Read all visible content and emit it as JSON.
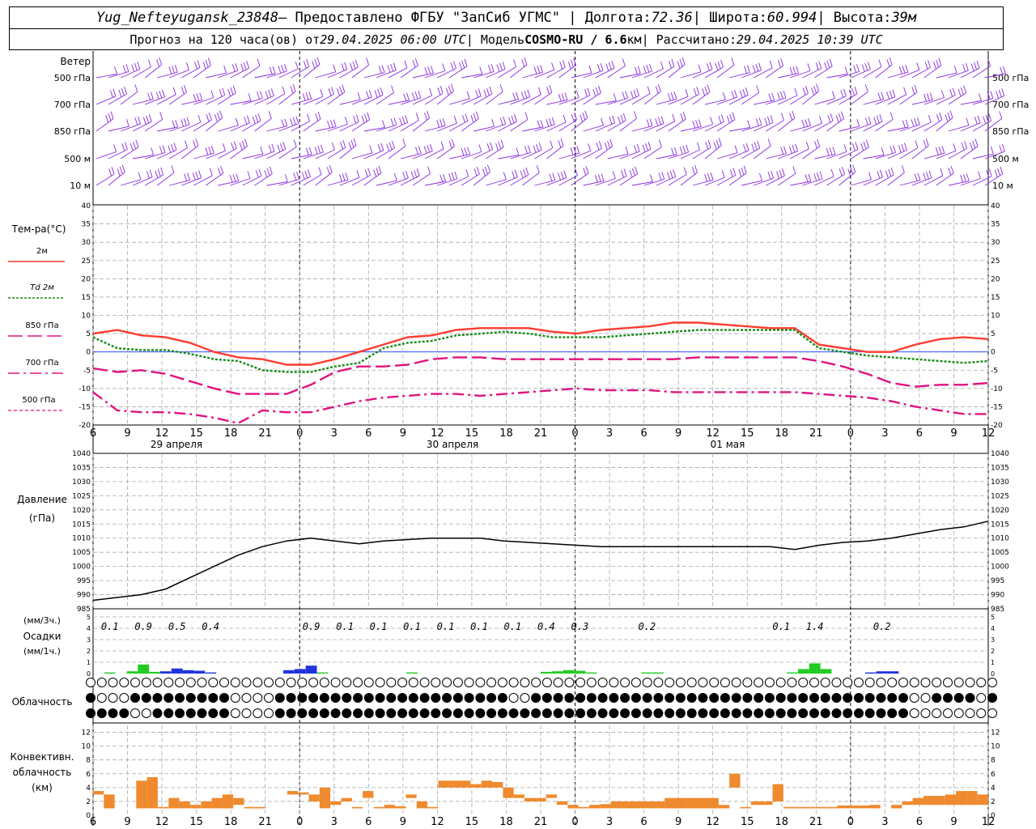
{
  "header": {
    "station": "Yug_Nefteyugansk_23848",
    "provided_by": " – Предоставлено ФГБУ \"ЗапСиб УГМС\" | Долгота: ",
    "lon": "72.36",
    "lat_label": " | Широта: ",
    "lat": "60.994",
    "alt_label": " | Высота: ",
    "alt": "39м",
    "forecast_prefix": "Прогноз на 120 часа(ов) от ",
    "run_time": "29.04.2025 06:00 UTC",
    "model_prefix": "  | Модель ",
    "model": "COSMO-RU / 6.6",
    "model_unit": "км",
    "calc_prefix": " | Рассчитано: ",
    "calc_time": "29.04.2025 10:39 UTC"
  },
  "chart_data": {
    "x_hours": [
      "6",
      "9",
      "12",
      "15",
      "18",
      "21",
      "0",
      "3",
      "6",
      "9",
      "12",
      "15",
      "18",
      "21",
      "0",
      "3",
      "6",
      "9",
      "12",
      "15",
      "18",
      "21",
      "0",
      "3",
      "6",
      "9",
      "12"
    ],
    "dates": [
      "29 апреля",
      "30 апреля",
      "01 мая"
    ],
    "wind": {
      "title": "Ветер",
      "levels": [
        "500 гПа",
        "700 гПа",
        "850 гПа",
        "500 м",
        "10  м"
      ],
      "color": "#8a2be2"
    },
    "temperature": {
      "title": "Тем-ра(°C)",
      "type": "line",
      "ylim": [
        -20,
        40
      ],
      "ticks": [
        -20,
        -15,
        -10,
        -5,
        0,
        5,
        10,
        15,
        20,
        25,
        30,
        35,
        40
      ],
      "series": [
        {
          "name": "2м",
          "color": "#ff3b30",
          "style": "solid",
          "values": [
            5,
            6,
            4.5,
            4,
            2.5,
            0,
            -1.5,
            -2,
            -3.5,
            -3.5,
            -2,
            0,
            2,
            4,
            4.5,
            6,
            6.5,
            6.5,
            6.5,
            5.5,
            5,
            6,
            6.5,
            7,
            8,
            8,
            7.5,
            7,
            6.5,
            6.5,
            2,
            1,
            0,
            0,
            2,
            3.5,
            4,
            3.5
          ]
        },
        {
          "name": "Td  2м",
          "color": "#1a8a1a",
          "style": "dotted",
          "values": [
            4,
            1,
            0.5,
            0.5,
            -0.5,
            -2,
            -2.5,
            -5,
            -5.5,
            -5.5,
            -4,
            -3,
            1,
            2.5,
            3,
            4.5,
            5,
            5.5,
            5,
            4,
            4,
            4,
            4.5,
            5,
            5.5,
            6,
            6,
            6,
            6,
            6,
            1,
            0,
            -1,
            -1.5,
            -2,
            -2.5,
            -3,
            -2.5
          ]
        },
        {
          "name": "850 гПа",
          "color": "#e0137f",
          "style": "longdash",
          "values": [
            -4.5,
            -5.5,
            -5,
            -6,
            -8,
            -10,
            -11.5,
            -11.5,
            -11.5,
            -9,
            -5.5,
            -4,
            -4,
            -3.5,
            -2,
            -1.5,
            -1.5,
            -2,
            -2,
            -2,
            -2,
            -2,
            -2,
            -2,
            -2,
            -1.5,
            -1.5,
            -1.5,
            -1.5,
            -1.5,
            -2.5,
            -4,
            -6,
            -8.5,
            -9.5,
            -9,
            -9,
            -8.5
          ]
        },
        {
          "name": "700 гПа",
          "color": "#e0137f",
          "style": "dashdot",
          "values": [
            -11,
            -16,
            -16.5,
            -16.5,
            -17,
            -18,
            -19.5,
            -16,
            -16.5,
            -16.5,
            -15,
            -13.5,
            -12.5,
            -12,
            -11.5,
            -11.5,
            -12,
            -11.5,
            -11,
            -10.5,
            -10,
            -10.5,
            -10.5,
            -10.5,
            -11,
            -11,
            -11,
            -11,
            -11,
            -11,
            -11.5,
            -12,
            -12.5,
            -13.5,
            -15,
            -16,
            -17,
            -17
          ]
        }
      ]
    },
    "pressure": {
      "title": "Давление",
      "unit": "(гПа)",
      "type": "line",
      "ylim": [
        985,
        1040
      ],
      "ticks": [
        985,
        990,
        995,
        1000,
        1005,
        1010,
        1015,
        1020,
        1025,
        1030,
        1035,
        1040
      ],
      "values": [
        988,
        989,
        990,
        992,
        996,
        1000,
        1004,
        1007,
        1009,
        1010,
        1009,
        1008,
        1009,
        1009.5,
        1010,
        1010,
        1010,
        1009,
        1008.5,
        1008,
        1007.5,
        1007,
        1007,
        1007,
        1007,
        1007,
        1007,
        1007,
        1007,
        1006,
        1007.5,
        1008.5,
        1009,
        1010,
        1011.5,
        1013,
        1014,
        1016
      ]
    },
    "precipitation": {
      "title": "Осадки",
      "unit3": "(мм/3ч.)",
      "unit1": "(мм/1ч.)",
      "type": "bar",
      "ylim": [
        0,
        5
      ],
      "ticks": [
        0,
        1,
        2,
        3,
        4,
        5
      ],
      "labels": [
        {
          "x": 1,
          "text": "0.1"
        },
        {
          "x": 4,
          "text": "0.9"
        },
        {
          "x": 7,
          "text": "0.5"
        },
        {
          "x": 10,
          "text": "0.4"
        },
        {
          "x": 19,
          "text": "0.9"
        },
        {
          "x": 22,
          "text": "0.1"
        },
        {
          "x": 25,
          "text": "0.1"
        },
        {
          "x": 28,
          "text": "0.1"
        },
        {
          "x": 31,
          "text": "0.1"
        },
        {
          "x": 34,
          "text": "0.1"
        },
        {
          "x": 37,
          "text": "0.1"
        },
        {
          "x": 40,
          "text": "0.4"
        },
        {
          "x": 43,
          "text": "0.3"
        },
        {
          "x": 49,
          "text": "0.2"
        },
        {
          "x": 61,
          "text": "0.1"
        },
        {
          "x": 64,
          "text": "1.4"
        },
        {
          "x": 70,
          "text": "0.2"
        }
      ],
      "bars": [
        {
          "x": 1,
          "v": 0.1,
          "c": "#22cc22"
        },
        {
          "x": 3,
          "v": 0.2,
          "c": "#22cc22"
        },
        {
          "x": 4,
          "v": 0.8,
          "c": "#22cc22"
        },
        {
          "x": 5,
          "v": 0.15,
          "c": "#22cc22"
        },
        {
          "x": 6,
          "v": 0.2,
          "c": "#2233dd"
        },
        {
          "x": 7,
          "v": 0.45,
          "c": "#2233dd"
        },
        {
          "x": 8,
          "v": 0.3,
          "c": "#2233dd"
        },
        {
          "x": 9,
          "v": 0.25,
          "c": "#2233dd"
        },
        {
          "x": 10,
          "v": 0.1,
          "c": "#2233dd"
        },
        {
          "x": 17,
          "v": 0.3,
          "c": "#2233dd"
        },
        {
          "x": 18,
          "v": 0.4,
          "c": "#2233dd"
        },
        {
          "x": 19,
          "v": 0.7,
          "c": "#2233dd"
        },
        {
          "x": 20,
          "v": 0.1,
          "c": "#22cc22"
        },
        {
          "x": 28,
          "v": 0.1,
          "c": "#22cc22"
        },
        {
          "x": 40,
          "v": 0.15,
          "c": "#22cc22"
        },
        {
          "x": 41,
          "v": 0.2,
          "c": "#22cc22"
        },
        {
          "x": 42,
          "v": 0.3,
          "c": "#22cc22"
        },
        {
          "x": 43,
          "v": 0.25,
          "c": "#22cc22"
        },
        {
          "x": 44,
          "v": 0.1,
          "c": "#22cc22"
        },
        {
          "x": 49,
          "v": 0.1,
          "c": "#22cc22"
        },
        {
          "x": 50,
          "v": 0.1,
          "c": "#22cc22"
        },
        {
          "x": 62,
          "v": 0.1,
          "c": "#22cc22"
        },
        {
          "x": 63,
          "v": 0.4,
          "c": "#22cc22"
        },
        {
          "x": 64,
          "v": 0.9,
          "c": "#22cc22"
        },
        {
          "x": 65,
          "v": 0.4,
          "c": "#22cc22"
        },
        {
          "x": 69,
          "v": 0.1,
          "c": "#2233dd"
        },
        {
          "x": 70,
          "v": 0.2,
          "c": "#2233dd"
        },
        {
          "x": 71,
          "v": 0.2,
          "c": "#2233dd"
        }
      ]
    },
    "cloudiness": {
      "title": "Облачность",
      "rows": [
        "0000000000000000000000000000000000000000000000000000000000000000000000000000000000",
        "8000888888888000088888888888888888888800888888888888888888888888888888888800888808",
        "8888008888888000088888888888888888888888888888888888888888888888888888888800000000"
      ]
    },
    "convective": {
      "title1": "Конвективн.",
      "title2": "облачность",
      "unit": "(км)",
      "type": "bar",
      "ylim": [
        0,
        13
      ],
      "ticks": [
        0,
        2,
        4,
        6,
        8,
        10,
        12
      ],
      "color": "#ef8a2e",
      "segments": [
        {
          "x0": 0,
          "x1": 1,
          "b": 3,
          "t": 3.5
        },
        {
          "x0": 1,
          "x1": 2,
          "b": 1,
          "t": 3
        },
        {
          "x0": 4,
          "x1": 5,
          "b": 1,
          "t": 5
        },
        {
          "x0": 5,
          "x1": 6,
          "b": 1,
          "t": 5.5
        },
        {
          "x0": 6,
          "x1": 7,
          "b": 1,
          "t": 1.2
        },
        {
          "x0": 7,
          "x1": 8,
          "b": 1,
          "t": 2.5
        },
        {
          "x0": 8,
          "x1": 9,
          "b": 1,
          "t": 2
        },
        {
          "x0": 9,
          "x1": 10,
          "b": 1,
          "t": 1.5
        },
        {
          "x0": 10,
          "x1": 11,
          "b": 1,
          "t": 2
        },
        {
          "x0": 11,
          "x1": 12,
          "b": 1,
          "t": 2.5
        },
        {
          "x0": 12,
          "x1": 13,
          "b": 1,
          "t": 3
        },
        {
          "x0": 13,
          "x1": 14,
          "b": 1.5,
          "t": 2.5
        },
        {
          "x0": 14,
          "x1": 16,
          "b": 1,
          "t": 1.2
        },
        {
          "x0": 18,
          "x1": 19,
          "b": 3,
          "t": 3.5
        },
        {
          "x0": 19,
          "x1": 20,
          "b": 3,
          "t": 3.3
        },
        {
          "x0": 20,
          "x1": 21,
          "b": 2,
          "t": 3
        },
        {
          "x0": 21,
          "x1": 22,
          "b": 1,
          "t": 4
        },
        {
          "x0": 22,
          "x1": 23,
          "b": 1.5,
          "t": 2
        },
        {
          "x0": 23,
          "x1": 24,
          "b": 2,
          "t": 2.5
        },
        {
          "x0": 24,
          "x1": 25,
          "b": 1,
          "t": 1.2
        },
        {
          "x0": 25,
          "x1": 26,
          "b": 2.5,
          "t": 3.5
        },
        {
          "x0": 26,
          "x1": 27,
          "b": 1,
          "t": 1.2
        },
        {
          "x0": 27,
          "x1": 28,
          "b": 1,
          "t": 1.5
        },
        {
          "x0": 28,
          "x1": 29,
          "b": 1,
          "t": 1.3
        },
        {
          "x0": 29,
          "x1": 30,
          "b": 2.5,
          "t": 3
        },
        {
          "x0": 30,
          "x1": 31,
          "b": 1,
          "t": 2
        },
        {
          "x0": 31,
          "x1": 32,
          "b": 1,
          "t": 1.2
        },
        {
          "x0": 32,
          "x1": 33,
          "b": 4,
          "t": 5
        },
        {
          "x0": 33,
          "x1": 35,
          "b": 4,
          "t": 5
        },
        {
          "x0": 35,
          "x1": 36,
          "b": 4,
          "t": 4.5
        },
        {
          "x0": 36,
          "x1": 37,
          "b": 4,
          "t": 5
        },
        {
          "x0": 37,
          "x1": 38,
          "b": 4,
          "t": 4.8
        },
        {
          "x0": 38,
          "x1": 39,
          "b": 2.5,
          "t": 4
        },
        {
          "x0": 39,
          "x1": 40,
          "b": 2.5,
          "t": 3
        },
        {
          "x0": 40,
          "x1": 42,
          "b": 2,
          "t": 2.5
        },
        {
          "x0": 42,
          "x1": 43,
          "b": 2.5,
          "t": 3
        },
        {
          "x0": 43,
          "x1": 44,
          "b": 1.5,
          "t": 2
        },
        {
          "x0": 44,
          "x1": 45,
          "b": 1,
          "t": 1.5
        },
        {
          "x0": 45,
          "x1": 46,
          "b": 1,
          "t": 1.2
        },
        {
          "x0": 46,
          "x1": 47,
          "b": 1,
          "t": 1.5
        },
        {
          "x0": 47,
          "x1": 48,
          "b": 1,
          "t": 1.6
        },
        {
          "x0": 48,
          "x1": 49,
          "b": 1,
          "t": 2
        },
        {
          "x0": 49,
          "x1": 53,
          "b": 1,
          "t": 2
        },
        {
          "x0": 53,
          "x1": 55,
          "b": 1,
          "t": 2.5
        },
        {
          "x0": 55,
          "x1": 58,
          "b": 1,
          "t": 2.5
        },
        {
          "x0": 58,
          "x1": 59,
          "b": 1,
          "t": 1.5
        },
        {
          "x0": 59,
          "x1": 60,
          "b": 4,
          "t": 6
        },
        {
          "x0": 60,
          "x1": 61,
          "b": 1,
          "t": 1.2
        },
        {
          "x0": 61,
          "x1": 63,
          "b": 1.5,
          "t": 2
        },
        {
          "x0": 63,
          "x1": 64,
          "b": 2,
          "t": 4.5
        },
        {
          "x0": 64,
          "x1": 65,
          "b": 1,
          "t": 1.2
        },
        {
          "x0": 65,
          "x1": 69,
          "b": 1,
          "t": 1.2
        },
        {
          "x0": 69,
          "x1": 72,
          "b": 1,
          "t": 1.4
        },
        {
          "x0": 72,
          "x1": 73,
          "b": 1,
          "t": 1.5
        },
        {
          "x0": 74,
          "x1": 75,
          "b": 1,
          "t": 1.5
        },
        {
          "x0": 75,
          "x1": 76,
          "b": 1.5,
          "t": 2
        },
        {
          "x0": 76,
          "x1": 77,
          "b": 1.5,
          "t": 2.5
        },
        {
          "x0": 77,
          "x1": 79,
          "b": 1.5,
          "t": 2.8
        },
        {
          "x0": 79,
          "x1": 80,
          "b": 1.5,
          "t": 3
        },
        {
          "x0": 80,
          "x1": 81,
          "b": 1.5,
          "t": 3.5
        },
        {
          "x0": 81,
          "x1": 82,
          "b": 1.5,
          "t": 3.5
        },
        {
          "x0": 82,
          "x1": 83,
          "b": 1.5,
          "t": 3
        }
      ]
    }
  }
}
